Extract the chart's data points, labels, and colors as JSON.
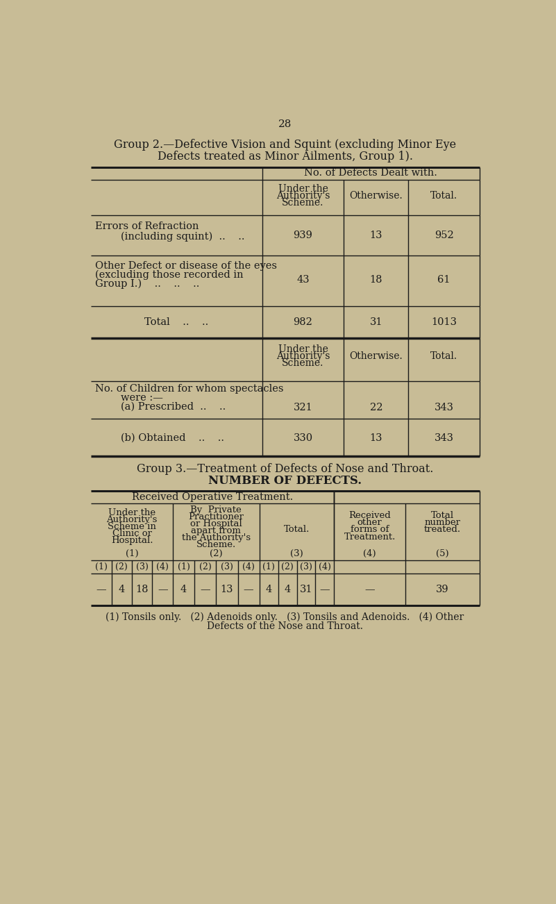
{
  "bg_color": "#c8bc96",
  "text_color": "#1a1a1a",
  "page_number": "28",
  "group2_title_line1": "Group 2.—Defective Vision and Squint (excluding Minor Eye",
  "group2_title_line2": "Defects treated as Minor Ailments, Group 1).",
  "section1_header": "No. of Defects Dealt with.",
  "row1_label_line1": "Errors of Refraction",
  "row1_label_line2": "        (including squint)  ..    ..",
  "row1_values": [
    "939",
    "13",
    "952"
  ],
  "row2_label_line1": "Other Defect or disease of the eyes",
  "row2_label_line2": "(excluding those recorded in",
  "row2_label_line3": "Group I.)    ..    ..    ..",
  "row2_values": [
    "43",
    "18",
    "61"
  ],
  "total_label": "Total    ..    ..",
  "total_values": [
    "982",
    "31",
    "1013"
  ],
  "spectacles_label_line1": "No. of Children for whom spectacles",
  "spectacles_label_line2": "        were :—",
  "prescribed_label": "        (a) Prescribed  ..    ..",
  "prescribed_values": [
    "321",
    "22",
    "343"
  ],
  "obtained_label": "        (b) Obtained    ..    ..",
  "obtained_values": [
    "330",
    "13",
    "343"
  ],
  "group3_title_line1": "Group 3.—Treatment of Defects of Nose and Throat.",
  "group3_title_line2": "NUMBER OF DEFECTS.",
  "g3_col1_h1": "Under the",
  "g3_col1_h2": "Authority's",
  "g3_col1_h3": "Scheme in",
  "g3_col1_h4": "Clinic or",
  "g3_col1_h5": "Hospital.",
  "g3_col1_h6": "(1)",
  "g3_col2_h1": "By  Private",
  "g3_col2_h2": "Practitioner",
  "g3_col2_h3": "or Hospital",
  "g3_col2_h4": "apart from",
  "g3_col2_h5": "the Authority's",
  "g3_col2_h6": "Scheme.",
  "g3_col2_h7": "(2)",
  "g3_col3_h1": "Total.",
  "g3_col3_h2": "(3)",
  "g3_col4_h1": "Received",
  "g3_col4_h2": "other",
  "g3_col4_h3": "forms of",
  "g3_col4_h4": "Treatment.",
  "g3_col4_h5": "(4)",
  "g3_col5_h1": "Total",
  "g3_col5_h2": "number",
  "g3_col5_h3": "treated.",
  "g3_col5_h4": "(5)",
  "g3_received_op": "Received Operative Treatment.",
  "g3_sub1": [
    "(1)",
    "(2)",
    "(3)",
    "(4)"
  ],
  "g3_sub2": [
    "(1)",
    "(2)",
    "(3)",
    "(4)"
  ],
  "g3_sub3": [
    "(1)",
    "(2)",
    "(3)",
    "(4)"
  ],
  "g3_data1": [
    "—",
    "4",
    "18",
    "—"
  ],
  "g3_data2": [
    "4",
    "—",
    "13",
    "—"
  ],
  "g3_data3": [
    "4",
    "4",
    "31",
    "—"
  ],
  "g3_total_treated": "39",
  "g3_received_other": "—",
  "footnote_line1": "(1) Tonsils only.   (2) Adenoids only.   (3) Tonsils and Adenoids.   (4) Other",
  "footnote_line2": "Defects of the Nose and Throat."
}
